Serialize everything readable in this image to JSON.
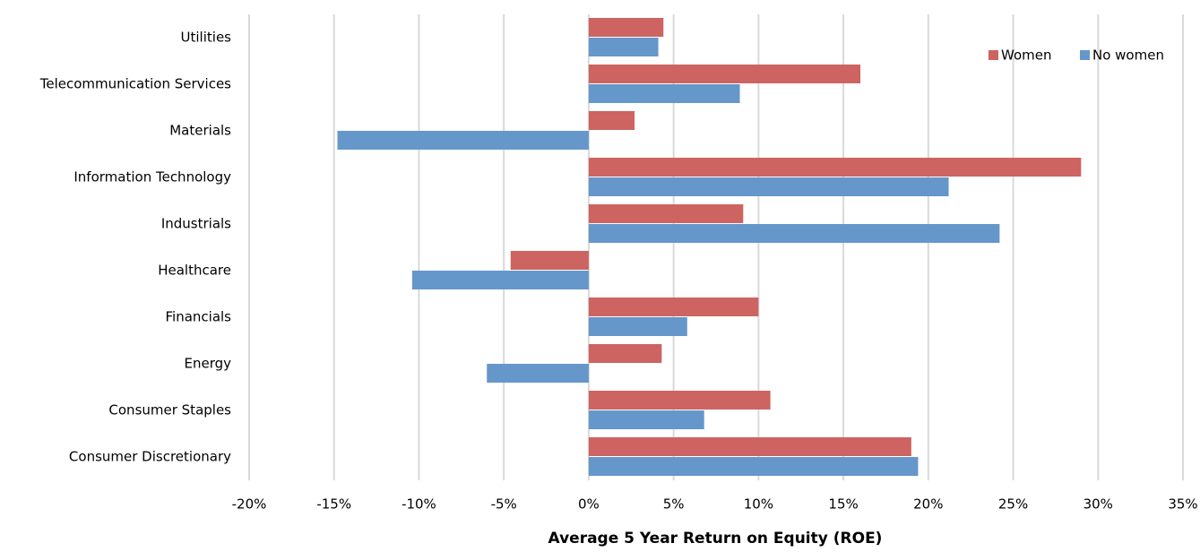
{
  "chart_data": {
    "type": "hbar",
    "xlabel": "Average 5 Year Return on Equity (ROE)",
    "categories": [
      "Utilities",
      "Telecommunication Services",
      "Materials",
      "Information Technology",
      "Industrials",
      "Healthcare",
      "Financials",
      "Energy",
      "Consumer Staples",
      "Consumer Discretionary"
    ],
    "series": [
      {
        "name": "Women",
        "color": "#cd6461",
        "values": [
          4.4,
          16.0,
          2.7,
          29.0,
          9.1,
          -4.6,
          10.0,
          4.3,
          10.7,
          19.0
        ]
      },
      {
        "name": "No women",
        "color": "#6597cb",
        "values": [
          4.1,
          8.9,
          -14.8,
          21.2,
          24.2,
          -10.4,
          5.8,
          -6.0,
          6.8,
          19.4
        ]
      }
    ],
    "xlim": [
      -20,
      35
    ],
    "xticks": [
      {
        "value": -20,
        "label": "-20%"
      },
      {
        "value": -15,
        "label": "-15%"
      },
      {
        "value": -10,
        "label": "-10%"
      },
      {
        "value": -5,
        "label": "-5%"
      },
      {
        "value": 0,
        "label": "0%"
      },
      {
        "value": 5,
        "label": "5%"
      },
      {
        "value": 10,
        "label": "10%"
      },
      {
        "value": 15,
        "label": "15%"
      },
      {
        "value": 20,
        "label": "20%"
      },
      {
        "value": 25,
        "label": "25%"
      },
      {
        "value": 30,
        "label": "30%"
      },
      {
        "value": 35,
        "label": "35%"
      }
    ],
    "grid": true,
    "legend": "upper right"
  }
}
